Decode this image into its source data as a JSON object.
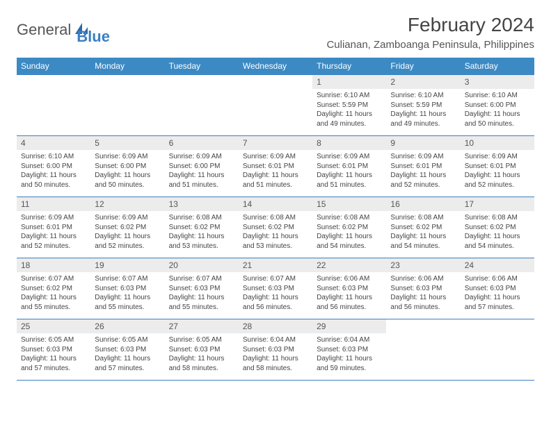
{
  "logo": {
    "text1": "General",
    "text2": "Blue"
  },
  "title": "February 2024",
  "location": "Culianan, Zamboanga Peninsula, Philippines",
  "weekdays": [
    "Sunday",
    "Monday",
    "Tuesday",
    "Wednesday",
    "Thursday",
    "Friday",
    "Saturday"
  ],
  "colors": {
    "header_bg": "#3b8ac4",
    "border": "#3b7fc4",
    "daynum_bg": "#ececec"
  },
  "first_day_index": 4,
  "days": [
    {
      "n": 1,
      "sr": "6:10 AM",
      "ss": "5:59 PM",
      "d": "11 hours and 49 minutes."
    },
    {
      "n": 2,
      "sr": "6:10 AM",
      "ss": "5:59 PM",
      "d": "11 hours and 49 minutes."
    },
    {
      "n": 3,
      "sr": "6:10 AM",
      "ss": "6:00 PM",
      "d": "11 hours and 50 minutes."
    },
    {
      "n": 4,
      "sr": "6:10 AM",
      "ss": "6:00 PM",
      "d": "11 hours and 50 minutes."
    },
    {
      "n": 5,
      "sr": "6:09 AM",
      "ss": "6:00 PM",
      "d": "11 hours and 50 minutes."
    },
    {
      "n": 6,
      "sr": "6:09 AM",
      "ss": "6:00 PM",
      "d": "11 hours and 51 minutes."
    },
    {
      "n": 7,
      "sr": "6:09 AM",
      "ss": "6:01 PM",
      "d": "11 hours and 51 minutes."
    },
    {
      "n": 8,
      "sr": "6:09 AM",
      "ss": "6:01 PM",
      "d": "11 hours and 51 minutes."
    },
    {
      "n": 9,
      "sr": "6:09 AM",
      "ss": "6:01 PM",
      "d": "11 hours and 52 minutes."
    },
    {
      "n": 10,
      "sr": "6:09 AM",
      "ss": "6:01 PM",
      "d": "11 hours and 52 minutes."
    },
    {
      "n": 11,
      "sr": "6:09 AM",
      "ss": "6:01 PM",
      "d": "11 hours and 52 minutes."
    },
    {
      "n": 12,
      "sr": "6:09 AM",
      "ss": "6:02 PM",
      "d": "11 hours and 52 minutes."
    },
    {
      "n": 13,
      "sr": "6:08 AM",
      "ss": "6:02 PM",
      "d": "11 hours and 53 minutes."
    },
    {
      "n": 14,
      "sr": "6:08 AM",
      "ss": "6:02 PM",
      "d": "11 hours and 53 minutes."
    },
    {
      "n": 15,
      "sr": "6:08 AM",
      "ss": "6:02 PM",
      "d": "11 hours and 54 minutes."
    },
    {
      "n": 16,
      "sr": "6:08 AM",
      "ss": "6:02 PM",
      "d": "11 hours and 54 minutes."
    },
    {
      "n": 17,
      "sr": "6:08 AM",
      "ss": "6:02 PM",
      "d": "11 hours and 54 minutes."
    },
    {
      "n": 18,
      "sr": "6:07 AM",
      "ss": "6:02 PM",
      "d": "11 hours and 55 minutes."
    },
    {
      "n": 19,
      "sr": "6:07 AM",
      "ss": "6:03 PM",
      "d": "11 hours and 55 minutes."
    },
    {
      "n": 20,
      "sr": "6:07 AM",
      "ss": "6:03 PM",
      "d": "11 hours and 55 minutes."
    },
    {
      "n": 21,
      "sr": "6:07 AM",
      "ss": "6:03 PM",
      "d": "11 hours and 56 minutes."
    },
    {
      "n": 22,
      "sr": "6:06 AM",
      "ss": "6:03 PM",
      "d": "11 hours and 56 minutes."
    },
    {
      "n": 23,
      "sr": "6:06 AM",
      "ss": "6:03 PM",
      "d": "11 hours and 56 minutes."
    },
    {
      "n": 24,
      "sr": "6:06 AM",
      "ss": "6:03 PM",
      "d": "11 hours and 57 minutes."
    },
    {
      "n": 25,
      "sr": "6:05 AM",
      "ss": "6:03 PM",
      "d": "11 hours and 57 minutes."
    },
    {
      "n": 26,
      "sr": "6:05 AM",
      "ss": "6:03 PM",
      "d": "11 hours and 57 minutes."
    },
    {
      "n": 27,
      "sr": "6:05 AM",
      "ss": "6:03 PM",
      "d": "11 hours and 58 minutes."
    },
    {
      "n": 28,
      "sr": "6:04 AM",
      "ss": "6:03 PM",
      "d": "11 hours and 58 minutes."
    },
    {
      "n": 29,
      "sr": "6:04 AM",
      "ss": "6:03 PM",
      "d": "11 hours and 59 minutes."
    }
  ]
}
